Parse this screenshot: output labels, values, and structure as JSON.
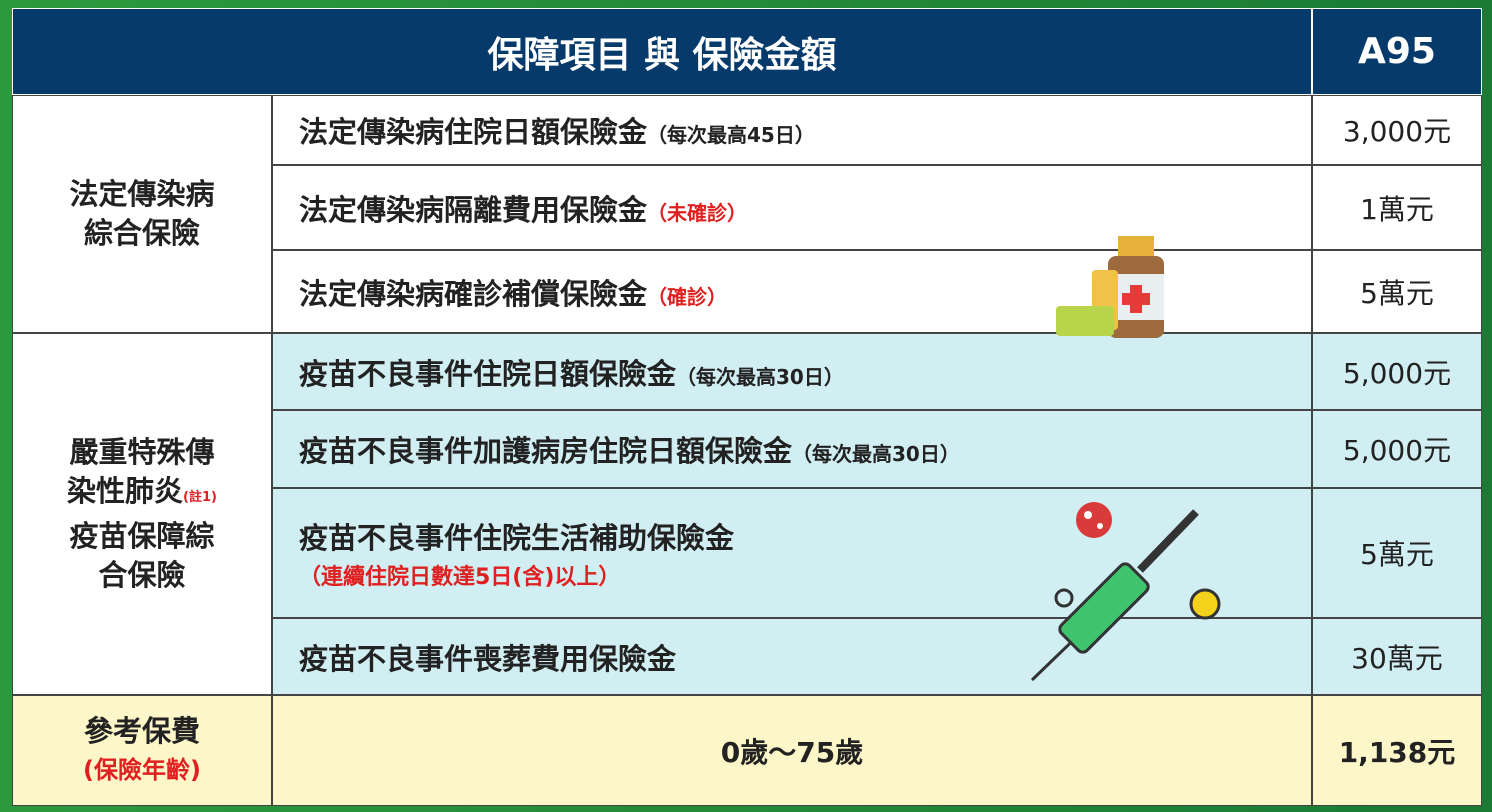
{
  "header": {
    "title": "保障項目 與 保險金額",
    "plan": "A95"
  },
  "groups": [
    {
      "name_lines": [
        "法定傳染病",
        "綜合保險"
      ],
      "items": [
        {
          "label": "法定傳染病住院日額保險金",
          "note": "（每次最高45日）",
          "amount": "3,000元"
        },
        {
          "label": "法定傳染病隔離費用保險金",
          "note": "（未確診）",
          "note_color": "#e02020",
          "amount": "1萬元"
        },
        {
          "label": "法定傳染病確診補償保險金",
          "note": "（確診）",
          "note_color": "#e02020",
          "amount": "5萬元"
        }
      ]
    },
    {
      "name_lines": [
        "嚴重特殊傳",
        "染性肺炎",
        "疫苗保障綜",
        "合保險"
      ],
      "name_note": "(註1)",
      "items": [
        {
          "label": "疫苗不良事件住院日額保險金",
          "note": "（每次最高30日）",
          "amount": "5,000元"
        },
        {
          "label": "疫苗不良事件加護病房住院日額保險金",
          "note": "（每次最高30日）",
          "amount": "5,000元"
        },
        {
          "label": "疫苗不良事件住院生活補助保險金",
          "note": "（連續住院日數達5日(含)以上）",
          "note_color": "#e02020",
          "note_below": true,
          "amount": "5萬元"
        },
        {
          "label": "疫苗不良事件喪葬費用保險金",
          "amount": "30萬元"
        }
      ]
    }
  ],
  "footer": {
    "label": "參考保費",
    "sublabel": "(保險年齡)",
    "age": "0歲～75歲",
    "premium": "1,138元"
  }
}
